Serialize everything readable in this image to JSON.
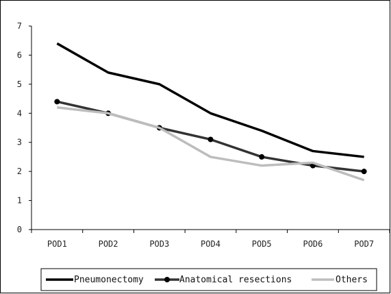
{
  "chart_data": {
    "type": "line",
    "categories": [
      "POD1",
      "POD2",
      "POD3",
      "POD4",
      "POD5",
      "POD6",
      "POD7"
    ],
    "ylim": [
      0,
      7
    ],
    "yticks": [
      0,
      1,
      2,
      3,
      4,
      5,
      6,
      7
    ],
    "grid": false,
    "legend_position": "bottom",
    "series": [
      {
        "name": "Pneumonectomy",
        "color": "#000000",
        "marker": "none",
        "values": [
          6.4,
          5.4,
          5.0,
          4.0,
          3.4,
          2.7,
          2.5
        ]
      },
      {
        "name": "Anatomical resections",
        "color": "#333333",
        "marker": "circle",
        "values": [
          4.4,
          4.0,
          3.5,
          3.1,
          2.5,
          2.2,
          2.0
        ]
      },
      {
        "name": "Others",
        "color": "#bdbdbd",
        "marker": "none",
        "values": [
          4.2,
          4.0,
          3.5,
          2.5,
          2.2,
          2.3,
          1.7
        ]
      }
    ]
  }
}
